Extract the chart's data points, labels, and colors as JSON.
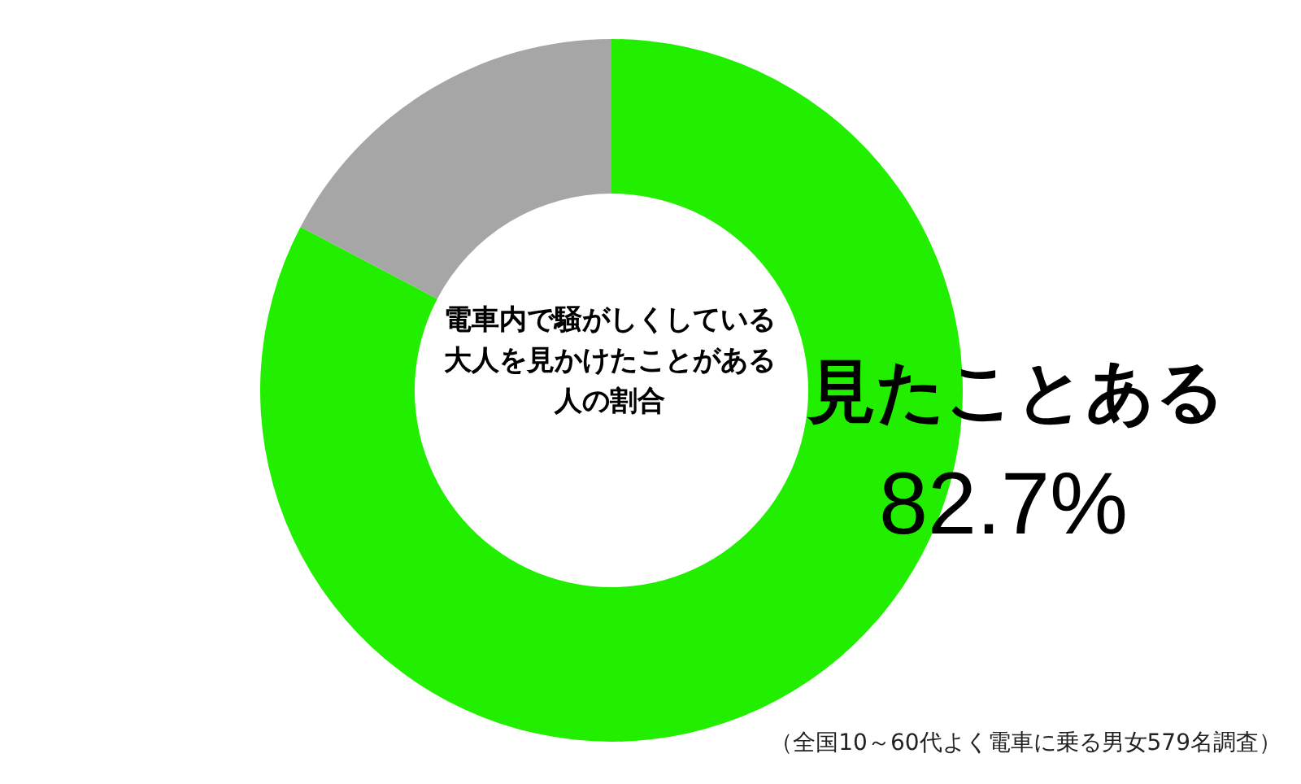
{
  "chart_data": {
    "type": "donut",
    "title": "電車内で騒がしくしている大人を見かけたことがある人の割合",
    "categories": [
      "見たことある",
      null
    ],
    "values": [
      82.7,
      17.3
    ],
    "colors": [
      "#22ee00",
      "#a6a6a6"
    ],
    "value_labels": [
      "82.7%",
      null
    ],
    "annotations": [
      "（全国10～60代よく電車に乗る男女579名調査）"
    ]
  }
}
